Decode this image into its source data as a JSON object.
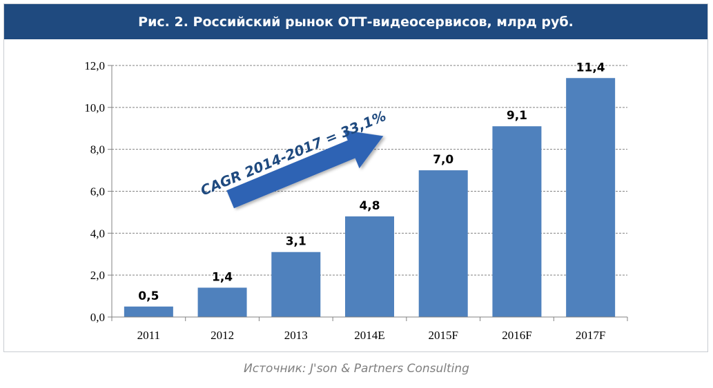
{
  "title": "Рис. 2. Российский рынок ОТТ-видеосервисов, млрд руб.",
  "source": "Источник: J'son & Partners Consulting",
  "colors": {
    "header_bg": "#1f4a7f",
    "bar": "#4f81bd",
    "arrow": "#2e64b4",
    "annotation_text": "#1f4a7f",
    "source_text": "#7f7f7f"
  },
  "chart_data": {
    "type": "bar",
    "categories": [
      "2011",
      "2012",
      "2013",
      "2014E",
      "2015F",
      "2016F",
      "2017F"
    ],
    "values": [
      0.5,
      1.4,
      3.1,
      4.8,
      7.0,
      9.1,
      11.4
    ],
    "value_labels": [
      "0,5",
      "1,4",
      "3,1",
      "4,8",
      "7,0",
      "9,1",
      "11,4"
    ],
    "y_ticks": [
      0,
      2,
      4,
      6,
      8,
      10,
      12
    ],
    "y_tick_labels": [
      "0,0",
      "2,0",
      "4,0",
      "6,0",
      "8,0",
      "10,0",
      "12,0"
    ],
    "ylim": [
      0,
      12
    ],
    "grid": true,
    "annotation": "CAGR 2014-2017 = 33,1%"
  }
}
